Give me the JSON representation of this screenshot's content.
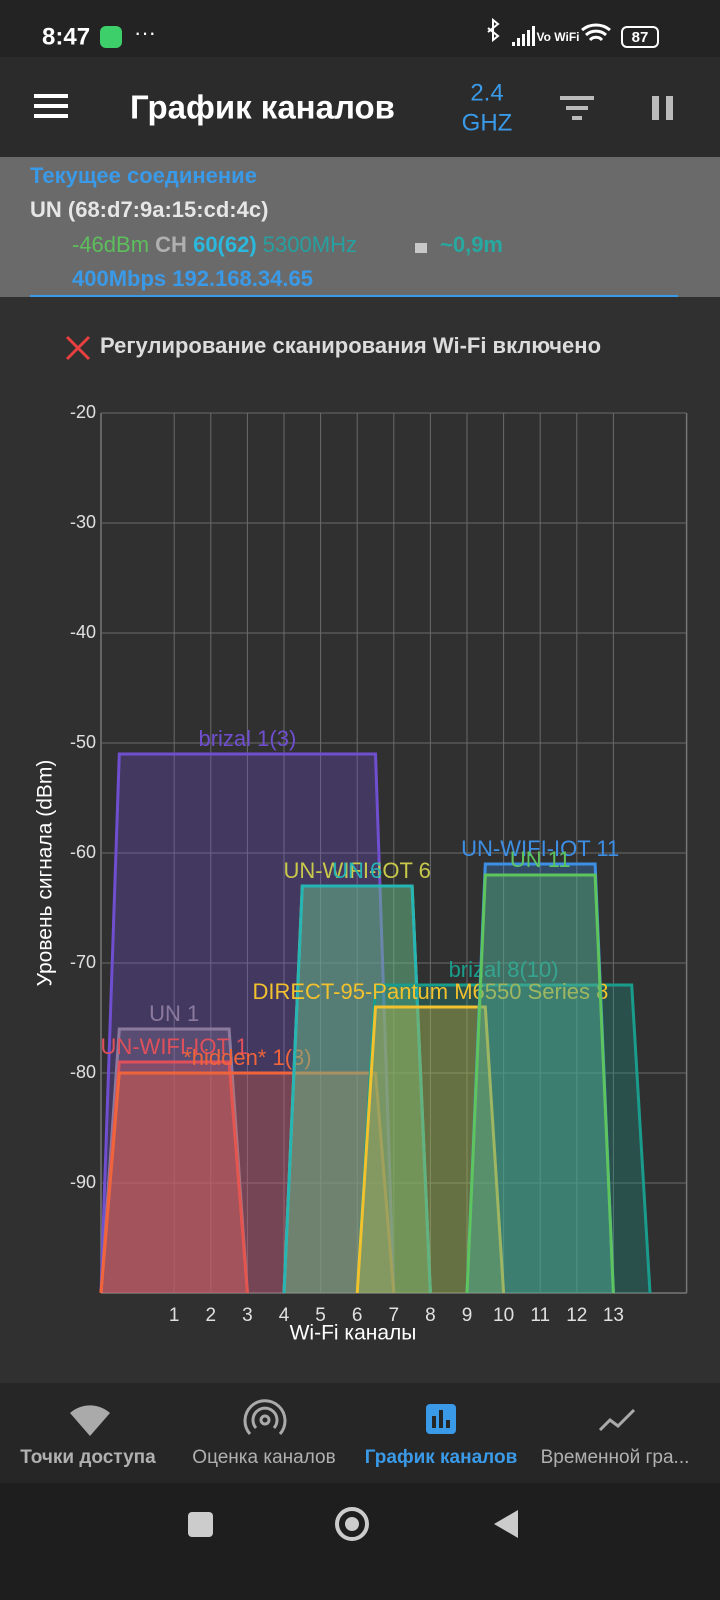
{
  "status_bar": {
    "time": "8:47",
    "volte": "Vo WiFi",
    "battery": "87"
  },
  "header": {
    "title": "График каналов",
    "band": "2.4",
    "band_unit": "GHZ"
  },
  "connection": {
    "heading": "Текущее соединение",
    "ssid": "UN (68:d7:9a:15:cd:4c)",
    "signal": "-46dBm",
    "channel_label": "CH",
    "channel": "60(62)",
    "frequency": "5300MHz",
    "distance": "~0,9m",
    "details": "400Mbps 192.168.34.65"
  },
  "notice": "Регулирование сканирования Wi-Fi включено",
  "chart_data": {
    "type": "channel",
    "xlabel": "Wi-Fi каналы",
    "ylabel": "Уровень сигнала (dBm)",
    "xlim": [
      -1,
      15
    ],
    "xticks": [
      1,
      2,
      3,
      4,
      5,
      6,
      7,
      8,
      9,
      10,
      11,
      12,
      13
    ],
    "ylim": [
      -100,
      -20
    ],
    "yticks": [
      -90,
      -80,
      -70,
      -60,
      -50,
      -40,
      -30,
      -20
    ],
    "grid": true,
    "series": [
      {
        "name": "brizal 1(3)",
        "color": "#6f4fd0",
        "channel": 3,
        "width": 40,
        "values": [
          -51
        ]
      },
      {
        "name": "UN 1",
        "color": "#8c7a9e",
        "channel": 1,
        "width": 20,
        "values": [
          -76
        ]
      },
      {
        "name": "UN-WIFI-IOT 1",
        "color": "#e0505a",
        "channel": 1,
        "width": 20,
        "values": [
          -79
        ]
      },
      {
        "name": "*hidden* 1(3)",
        "color": "#f0643c",
        "channel": 3,
        "width": 40,
        "values": [
          -80
        ]
      },
      {
        "name": "UN-WIFI-IOT 6",
        "color": "#c8c84a",
        "channel": 6,
        "width": 20,
        "values": [
          -63
        ]
      },
      {
        "name": "UN 6",
        "color": "#25b5b5",
        "channel": 6,
        "width": 20,
        "values": [
          -63
        ]
      },
      {
        "name": "brizal 8(10)",
        "color": "#1a9c8c",
        "channel": 10,
        "width": 40,
        "values": [
          -72
        ]
      },
      {
        "name": "DIRECT-95-Pantum M6550 Series 8",
        "color": "#f2c12e",
        "channel": 8,
        "width": 20,
        "values": [
          -74
        ]
      },
      {
        "name": "UN-WIFI-IOT 11",
        "color": "#3d8fe6",
        "channel": 11,
        "width": 20,
        "values": [
          -61
        ]
      },
      {
        "name": "UN 11",
        "color": "#5ec45e",
        "channel": 11,
        "width": 20,
        "values": [
          -62
        ]
      }
    ]
  },
  "nav": {
    "tabs": [
      "Точки доступа",
      "Оценка каналов",
      "График каналов",
      "Временной гра..."
    ]
  }
}
